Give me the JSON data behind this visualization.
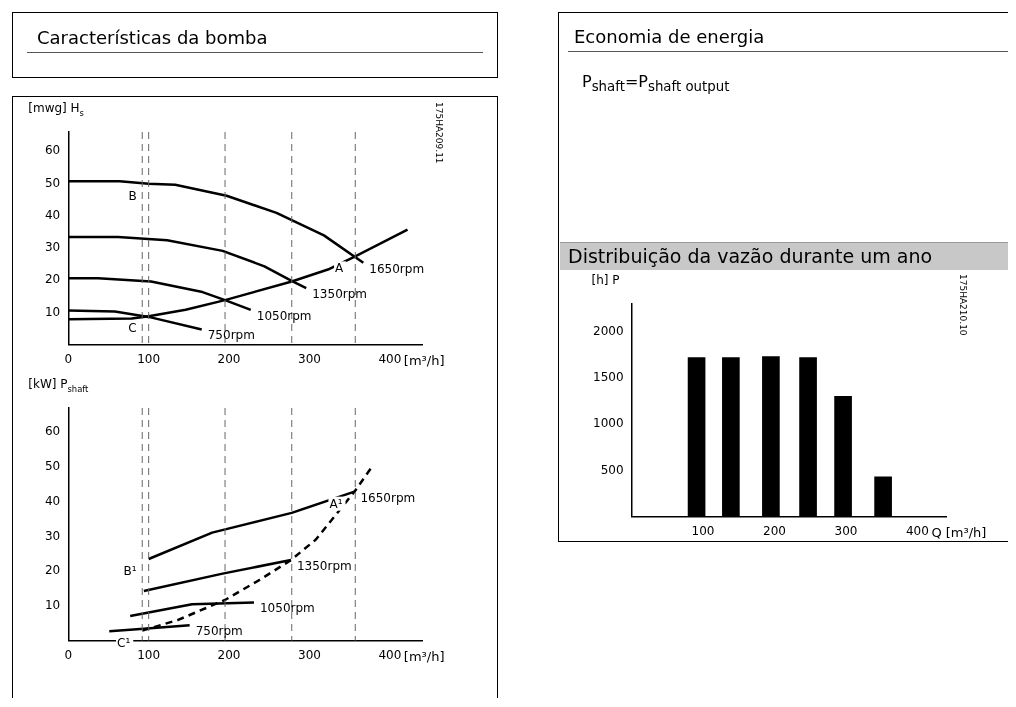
{
  "chart_data": [
    {
      "type": "line",
      "title": "Características da bomba",
      "xlabel": "[m³/h]",
      "ylabel": "[mwg] H$_{s}$",
      "xlim": [
        0,
        440
      ],
      "ylim": [
        0,
        66
      ],
      "xticks": [
        0,
        100,
        200,
        300,
        400
      ],
      "yticks": [
        10,
        20,
        30,
        40,
        50,
        60
      ],
      "grid": false,
      "line_style": "solid",
      "marker": "none",
      "series": [
        {
          "name": "1650rpm",
          "color": "#000000",
          "x": [
            0,
            64,
            100,
            133,
            197,
            259,
            318,
            367
          ],
          "values": [
            50.7,
            50.7,
            49.9,
            49.6,
            46.2,
            40.9,
            33.9,
            25.4
          ]
        },
        {
          "name": "1350rpm",
          "color": "#000000",
          "x": [
            0,
            62,
            123,
            192,
            244,
            279,
            296
          ],
          "values": [
            33.4,
            33.4,
            32.4,
            29.1,
            24.3,
            19.6,
            17.5
          ]
        },
        {
          "name": "1050rpm",
          "color": "#000000",
          "x": [
            0,
            37,
            103,
            167,
            195,
            227
          ],
          "values": [
            20.6,
            20.6,
            19.6,
            16.3,
            13.8,
            10.8
          ]
        },
        {
          "name": "750rpm",
          "color": "#000000",
          "x": [
            0,
            58,
            100,
            166
          ],
          "values": [
            10.6,
            10.3,
            8.6,
            4.7
          ]
        },
        {
          "color": "#000000",
          "x": [
            0,
            79,
            100,
            146,
            195,
            278,
            323,
            357,
            422
          ],
          "values": [
            7.9,
            8.1,
            8.8,
            10.8,
            13.8,
            19.6,
            23.3,
            27.4,
            35.7
          ]
        }
      ],
      "ref_lines": [
        {
          "axis": "x",
          "value": 92,
          "color": "#666666",
          "line_style": "dashed"
        },
        {
          "axis": "x",
          "value": 100,
          "color": "#666666",
          "line_style": "dashed"
        },
        {
          "axis": "x",
          "value": 195,
          "color": "#666666",
          "line_style": "dashed"
        },
        {
          "axis": "x",
          "value": 278,
          "color": "#666666",
          "line_style": "dashed"
        },
        {
          "axis": "x",
          "value": 357,
          "color": "#666666",
          "line_style": "dashed"
        }
      ],
      "annotations": [
        {
          "text": "A",
          "x": 357,
          "y": 27.4
        },
        {
          "text": "B",
          "x": 100,
          "y": 49.9
        },
        {
          "text": "C",
          "x": 100,
          "y": 8.8
        },
        "175HA209.11"
      ]
    },
    {
      "type": "line",
      "xlabel": "[m³/h]",
      "ylabel": "[kW] P$_{shaft}$",
      "xlim": [
        0,
        440
      ],
      "ylim": [
        0,
        67
      ],
      "xticks": [
        0,
        100,
        200,
        300,
        400
      ],
      "yticks": [
        10,
        20,
        30,
        40,
        50,
        60
      ],
      "grid": false,
      "line_style": "solid",
      "marker": "none",
      "series": [
        {
          "name": "1650rpm",
          "color": "#000000",
          "x": [
            100,
            179,
            278,
            356
          ],
          "values": [
            23.5,
            31.1,
            36.8,
            42.9
          ]
        },
        {
          "name": "1350rpm",
          "color": "#000000",
          "x": [
            94,
            192,
            277
          ],
          "values": [
            14.3,
            19.3,
            23.2
          ]
        },
        {
          "name": "1050rpm",
          "color": "#000000",
          "x": [
            77,
            154,
            231
          ],
          "values": [
            7.1,
            10.5,
            11.0
          ]
        },
        {
          "name": "750rpm",
          "color": "#000000",
          "x": [
            51,
            94,
            151
          ],
          "values": [
            2.7,
            3.4,
            4.4
          ]
        },
        {
          "color": "#000000",
          "line_style": "dashed",
          "x": [
            92,
            136,
            195,
            238,
            277,
            308,
            356,
            376
          ],
          "values": [
            2.9,
            5.9,
            11.7,
            17.5,
            23.2,
            29.1,
            42.9,
            49.5
          ]
        }
      ],
      "ref_lines": [
        {
          "axis": "x",
          "value": 92,
          "color": "#666666",
          "line_style": "dashed"
        },
        {
          "axis": "x",
          "value": 100,
          "color": "#666666",
          "line_style": "dashed"
        },
        {
          "axis": "x",
          "value": 195,
          "color": "#666666",
          "line_style": "dashed"
        },
        {
          "axis": "x",
          "value": 278,
          "color": "#666666",
          "line_style": "dashed"
        },
        {
          "axis": "x",
          "value": 357,
          "color": "#666666",
          "line_style": "dashed"
        }
      ],
      "annotations": [
        {
          "text": "A¹",
          "x": 356,
          "y": 42.9
        },
        {
          "text": "B¹",
          "x": 100,
          "y": 23.5
        },
        {
          "text": "C¹",
          "x": 92,
          "y": 2.9
        }
      ]
    },
    {
      "type": "other",
      "title": "Economia de energia",
      "annotations": [
        "P$_{shaft}$=P$_{shaft output}$"
      ]
    },
    {
      "type": "bar",
      "title": "Distribuição da vazão durante um ano",
      "xlabel": "Q [m³/h]",
      "ylabel": "[h] P",
      "x": [
        91,
        139,
        195,
        247,
        296,
        352
      ],
      "values": [
        1720,
        1720,
        1730,
        1720,
        1300,
        430
      ],
      "color": "#000000",
      "xlim": [
        0,
        440
      ],
      "ylim": [
        0,
        2300
      ],
      "xticks": [
        100,
        200,
        300,
        400
      ],
      "yticks": [
        500,
        1000,
        1500,
        2000
      ],
      "grid": false,
      "annotations": [
        "175HA210.10"
      ]
    }
  ]
}
